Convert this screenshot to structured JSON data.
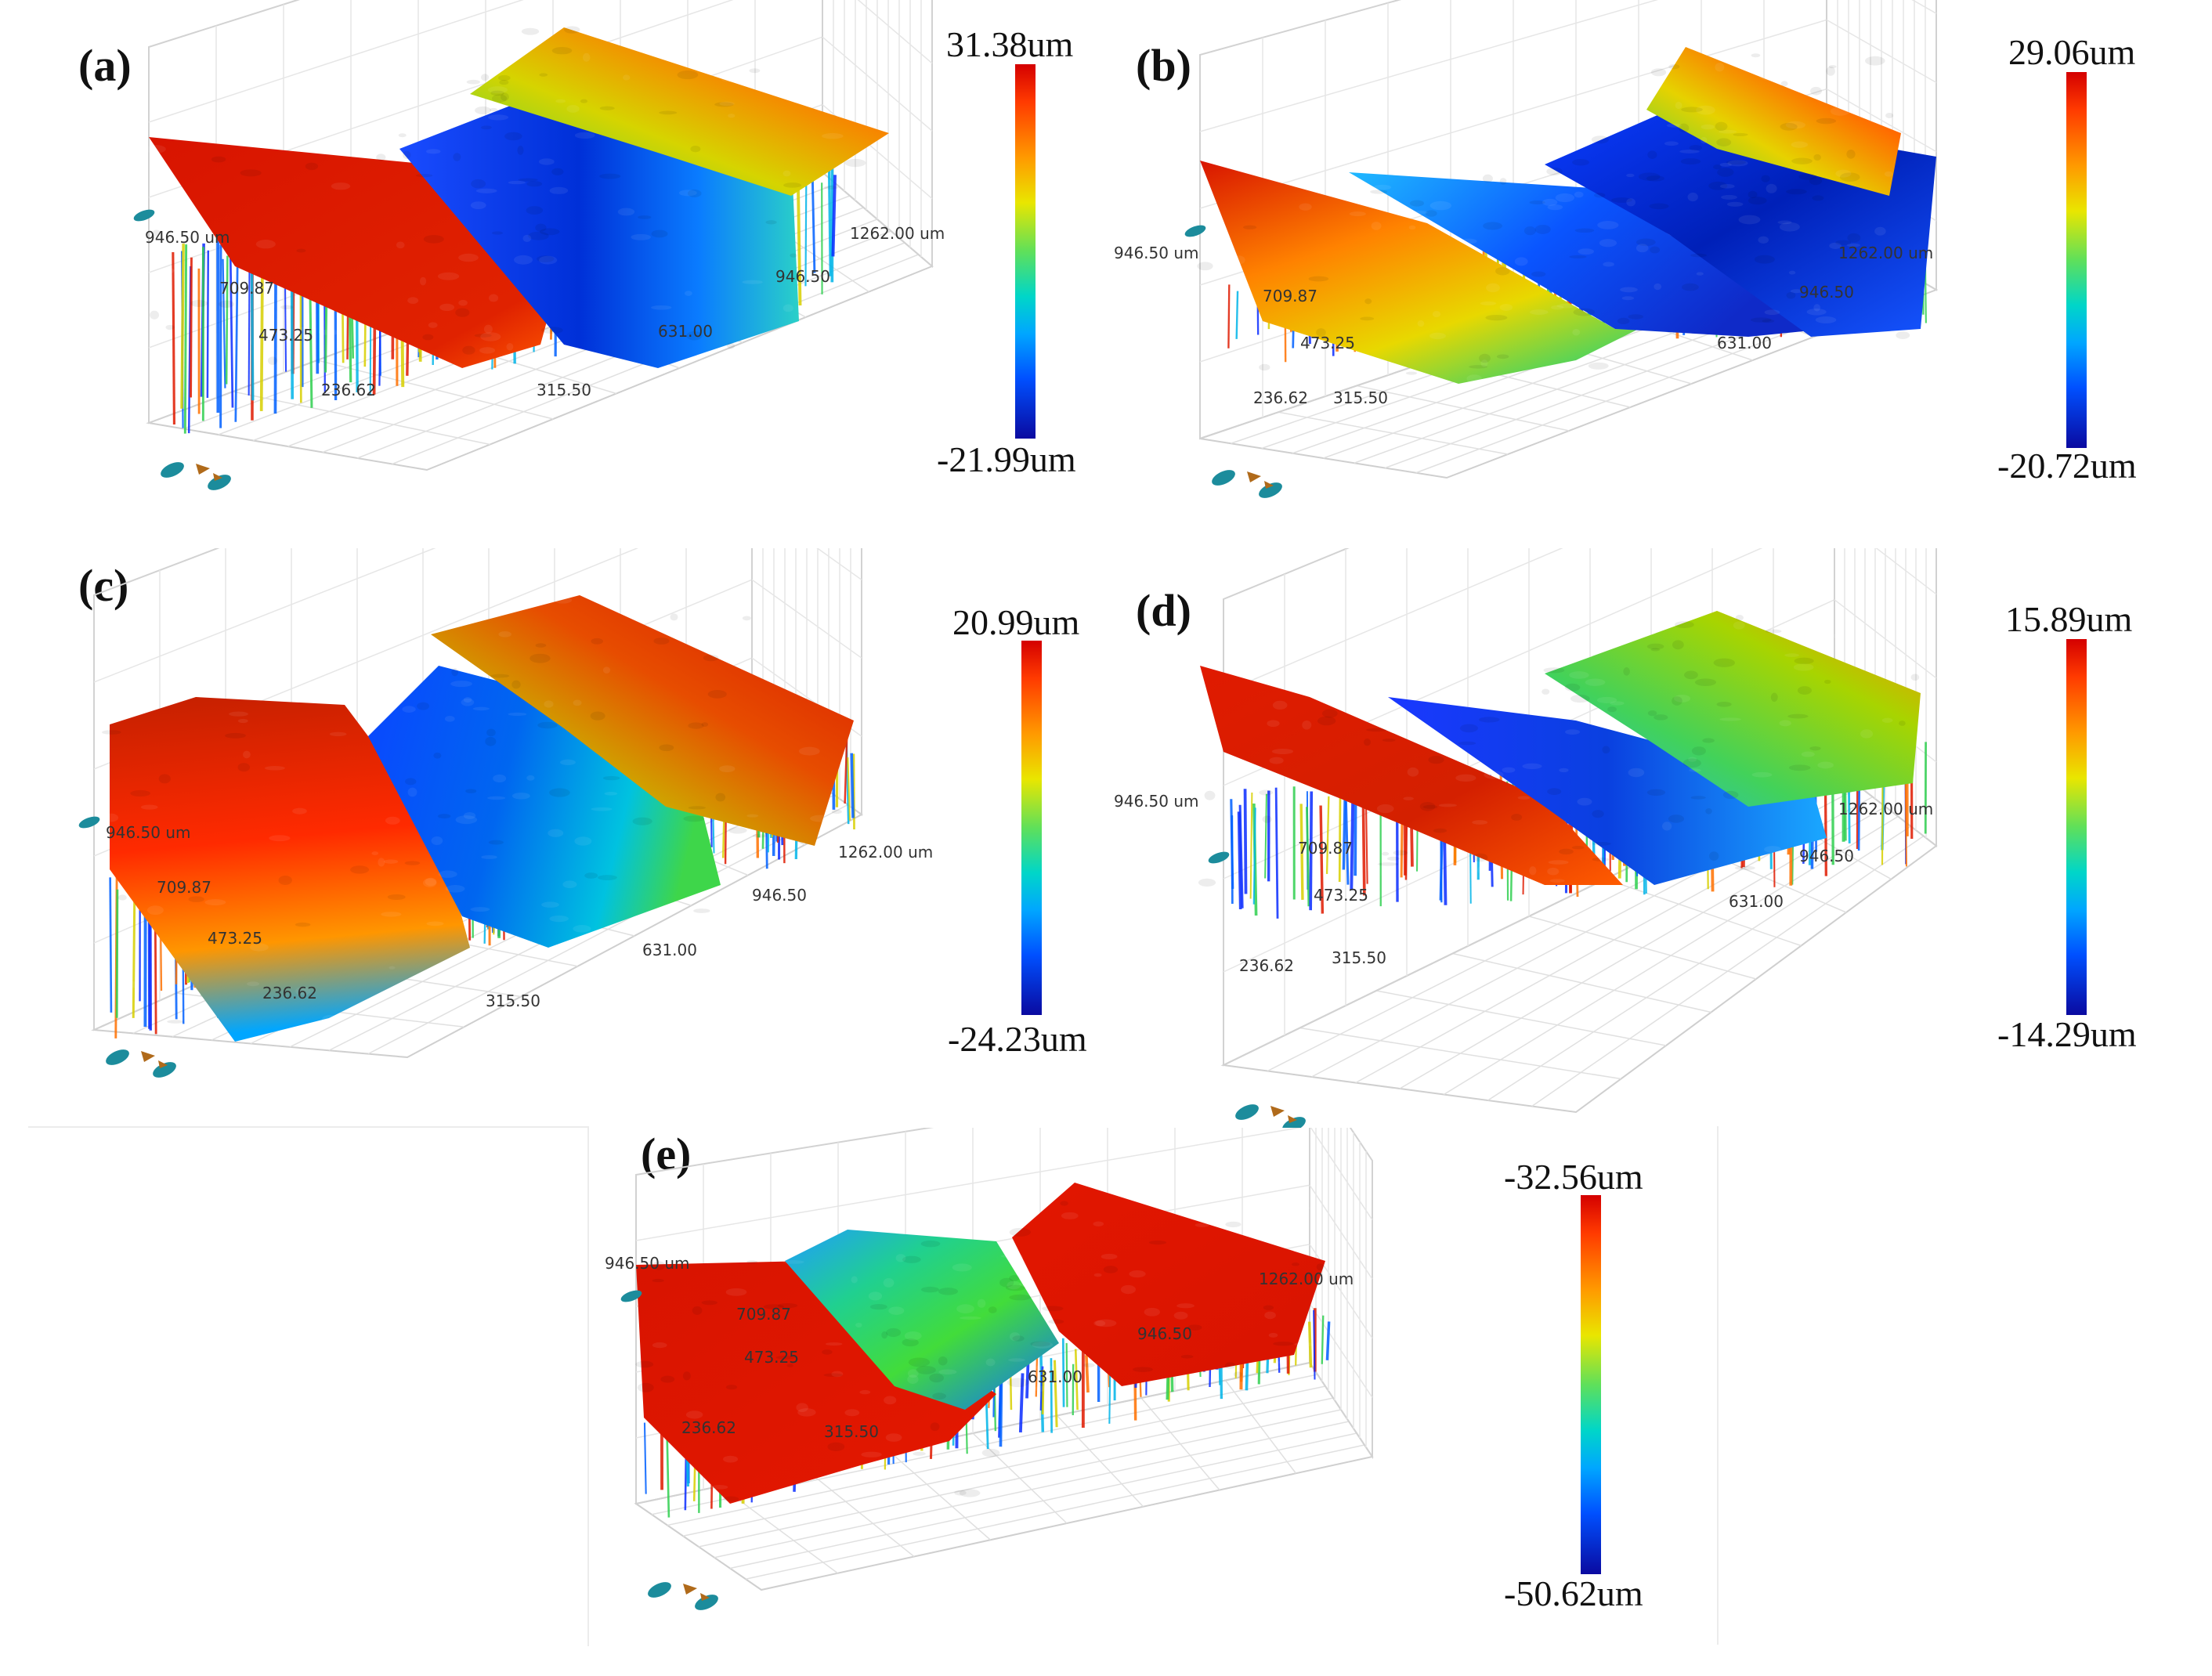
{
  "chart_data": [
    {
      "type": "surface",
      "panel_label": "(a)",
      "colorbar": {
        "max": "31.38um",
        "min": "-21.99um"
      },
      "y_ticks": [
        "946.50 um",
        "709.87",
        "473.25",
        "236.62"
      ],
      "x_ticks": [
        "315.50",
        "631.00",
        "946.50",
        "1262.00 um"
      ],
      "profile": [
        "high",
        "trench",
        "high"
      ]
    },
    {
      "type": "surface",
      "panel_label": "(b)",
      "colorbar": {
        "max": "29.06um",
        "min": "-20.72um"
      },
      "y_ticks": [
        "946.50 um",
        "709.87",
        "473.25",
        "236.62"
      ],
      "x_ticks": [
        "315.50",
        "631.00",
        "946.50",
        "1262.00 um"
      ],
      "profile": [
        "slope",
        "trench",
        "high"
      ]
    },
    {
      "type": "surface",
      "panel_label": "(c)",
      "colorbar": {
        "max": "20.99um",
        "min": "-24.23um"
      },
      "y_ticks": [
        "946.50 um",
        "709.87",
        "473.25",
        "236.62"
      ],
      "x_ticks": [
        "315.50",
        "631.00",
        "946.50",
        "1262.00 um"
      ],
      "profile": [
        "rough-high",
        "trench",
        "rough-high"
      ]
    },
    {
      "type": "surface",
      "panel_label": "(d)",
      "colorbar": {
        "max": "15.89um",
        "min": "-14.29um"
      },
      "y_ticks": [
        "946.50 um",
        "709.87",
        "473.25",
        "236.62"
      ],
      "x_ticks": [
        "315.50",
        "631.00",
        "946.50",
        "1262.00 um"
      ],
      "profile": [
        "ridge",
        "trench",
        "gentle-rise"
      ]
    },
    {
      "type": "surface",
      "panel_label": "(e)",
      "colorbar": {
        "max": "-32.56um",
        "min": "-50.62um"
      },
      "y_ticks": [
        "946.50 um",
        "709.87",
        "473.25",
        "236.62"
      ],
      "x_ticks": [
        "315.50",
        "631.00",
        "946.50",
        "1262.00 um"
      ],
      "profile": [
        "flat-high",
        "shallow-groove",
        "flat-high"
      ]
    }
  ],
  "colors": {
    "red": "#d81400",
    "orange": "#ff8a00",
    "yellow": "#e6e600",
    "green": "#33cc33",
    "cyan": "#00c8e0",
    "blue": "#0a3cff",
    "navy": "#0a0aa0"
  }
}
